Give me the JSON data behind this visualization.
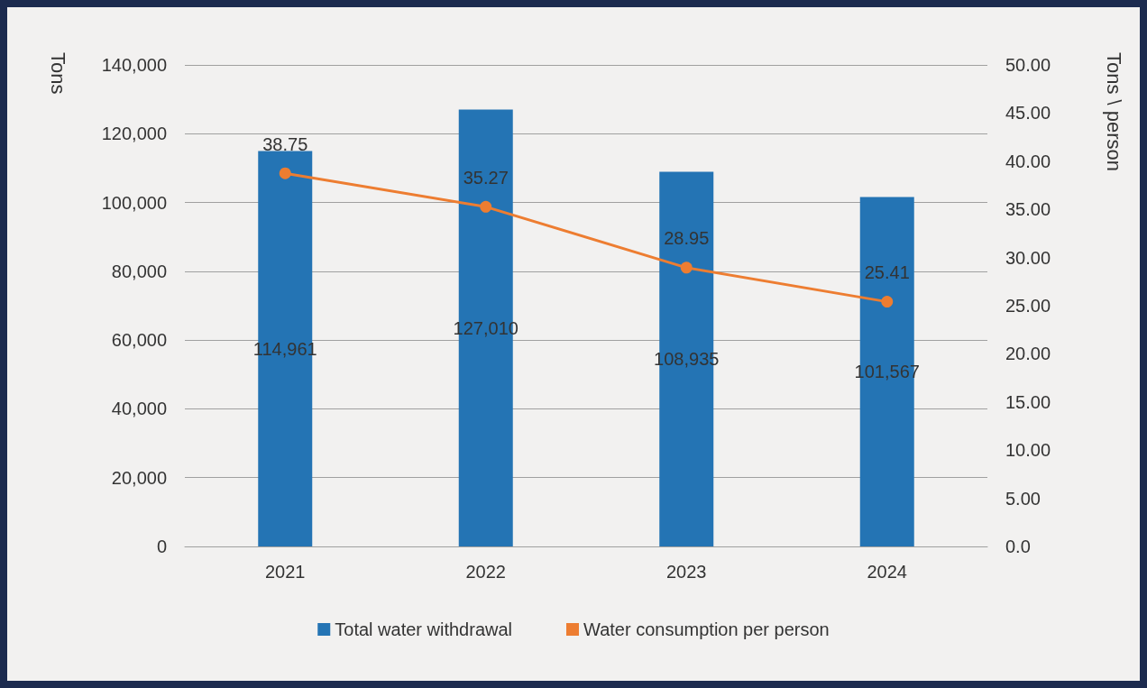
{
  "chart_data": {
    "type": "bar",
    "categories": [
      "2021",
      "2022",
      "2023",
      "2024"
    ],
    "ylabel": "Tons",
    "y2label": "Tons \\ person",
    "series": [
      {
        "name": "Total water withdrawal",
        "color": "#2474b4",
        "values": [
          114961,
          127010,
          108935,
          101567
        ],
        "value_labels": [
          "114,961",
          "127,010",
          "108,935",
          "101,567"
        ]
      },
      {
        "name": "Water consumption per person",
        "type": "line",
        "axis": "y2",
        "color": "#ed7d31",
        "values": [
          38.75,
          35.27,
          28.95,
          25.41
        ],
        "value_labels": [
          "38.75",
          "35.27",
          "28.95",
          "25.41"
        ]
      }
    ],
    "ylim": [
      0,
      140000
    ],
    "yticks": [
      {
        "value": 0,
        "label": "0"
      },
      {
        "value": 20000,
        "label": "20,000"
      },
      {
        "value": 40000,
        "label": "40,000"
      },
      {
        "value": 60000,
        "label": "60,000"
      },
      {
        "value": 80000,
        "label": "80,000"
      },
      {
        "value": 100000,
        "label": "100,000"
      },
      {
        "value": 120000,
        "label": "120,000"
      },
      {
        "value": 140000,
        "label": "140,000"
      }
    ],
    "y2lim": [
      0,
      50
    ],
    "y2ticks": [
      {
        "value": 0,
        "label": "0.0"
      },
      {
        "value": 5,
        "label": "5.00"
      },
      {
        "value": 10,
        "label": "10.00"
      },
      {
        "value": 15,
        "label": "15.00"
      },
      {
        "value": 20,
        "label": "20.00"
      },
      {
        "value": 25,
        "label": "25.00"
      },
      {
        "value": 30,
        "label": "30.00"
      },
      {
        "value": 35,
        "label": "35.00"
      },
      {
        "value": 40,
        "label": "40.00"
      },
      {
        "value": 45,
        "label": "45.00"
      },
      {
        "value": 50,
        "label": "50.00"
      }
    ],
    "grid": "y",
    "legend": "bottom",
    "marker": "circle"
  }
}
